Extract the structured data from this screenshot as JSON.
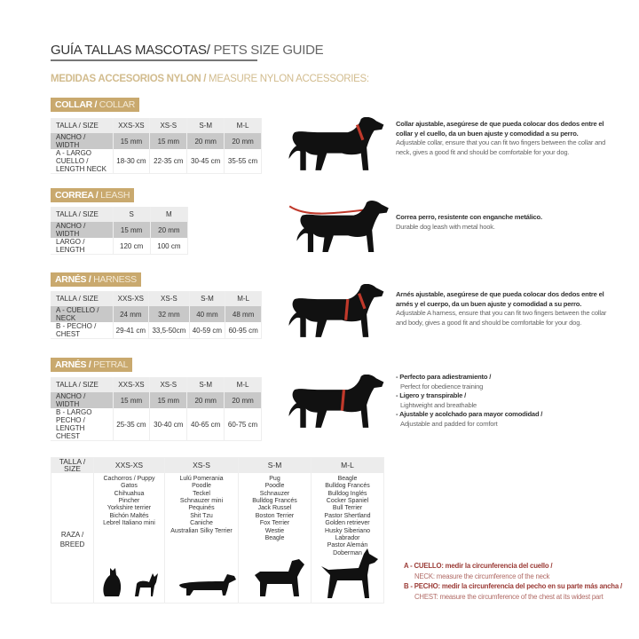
{
  "header": {
    "title_es": "GUÍA TALLAS MASCOTAS/",
    "title_en": " PETS SIZE GUIDE",
    "subtitle_es": "MEDIDAS ACCESORIOS NYLON /",
    "subtitle_en": " MEASURE NYLON ACCESSORIES:"
  },
  "colors": {
    "accent": "#c9a96e",
    "note": "#9b3b36",
    "row_gray": "#c8c8c8"
  },
  "collar": {
    "badge_es": "COLLAR /",
    "badge_en": " COLLAR",
    "rows": [
      [
        "TALLA / SIZE",
        "XXS-XS",
        "XS-S",
        "S-M",
        "M-L"
      ],
      [
        "ANCHO / WIDTH",
        "15 mm",
        "15 mm",
        "20 mm",
        "20 mm"
      ],
      [
        "A - LARGO CUELLO / LENGTH NECK",
        "18-30 cm",
        "22-35 cm",
        "30-45 cm",
        "35-55 cm"
      ]
    ],
    "desc_es": "Collar ajustable, asegúrese de que pueda colocar dos dedos entre el collar y el cuello, da un buen ajuste y comodidad a su perro.",
    "desc_en": "Adjustable collar, ensure that you can fit two fingers between the collar and neck, gives a good fit and should be comfortable for your dog."
  },
  "leash": {
    "badge_es": "CORREA /",
    "badge_en": " LEASH",
    "rows": [
      [
        "TALLA / SIZE",
        "S",
        "M"
      ],
      [
        "ANCHO / WIDTH",
        "15 mm",
        "20 mm"
      ],
      [
        "LARGO / LENGTH",
        "120 cm",
        "100 cm"
      ]
    ],
    "desc_es": "Correa perro, resistente con enganche metálico.",
    "desc_en": "Durable dog leash with metal hook."
  },
  "harness": {
    "badge_es": "ARNÉS /",
    "badge_en": " HARNESS",
    "rows": [
      [
        "TALLA / SIZE",
        "XXS-XS",
        "XS-S",
        "S-M",
        "M-L"
      ],
      [
        "A - CUELLO / NECK",
        "24 mm",
        "32 mm",
        "40 mm",
        "48 mm"
      ],
      [
        "B - PECHO / CHEST",
        "29-41 cm",
        "33,5-50cm",
        "40-59 cm",
        "60-95 cm"
      ]
    ],
    "desc_es": "Arnés ajustable, asegúrese de que pueda colocar dos dedos entre el arnés y el cuerpo, da un buen ajuste y comodidad a su perro.",
    "desc_en": "Adjustable A harness, ensure that you can fit two fingers between the collar and body, gives a good fit and should be comfortable for your dog."
  },
  "petral": {
    "badge_es": "ARNÉS /",
    "badge_en": " PETRAL",
    "rows": [
      [
        "TALLA / SIZE",
        "XXS-XS",
        "XS-S",
        "S-M",
        "M-L"
      ],
      [
        "ANCHO / WIDTH",
        "15 mm",
        "15 mm",
        "20 mm",
        "20 mm"
      ],
      [
        "B - LARGO PECHO / LENGTH CHEST",
        "25-35 cm",
        "30-40 cm",
        "40-65 cm",
        "60-75 cm"
      ]
    ],
    "bullets": [
      {
        "es": "- Perfecto para adiestramiento /",
        "en": "Perfect for obedience training"
      },
      {
        "es": "- Ligero y transpirable /",
        "en": "Lightweight and breathable"
      },
      {
        "es": "- Ajustable y acolchado para mayor comodidad /",
        "en": "Adjustable and padded for comfort"
      }
    ]
  },
  "breeds": {
    "size_label": "TALLA / SIZE",
    "breed_label": "RAZA / BREED",
    "sizes": [
      "XXS-XS",
      "XS-S",
      "S-M",
      "M-L"
    ],
    "lists": [
      [
        "Cachorros / Puppy",
        "Gatos",
        "Chihuahua",
        "Pincher",
        "Yorkshire terrier",
        "Bichón Maltés",
        "Lebrel Italiano mini"
      ],
      [
        "Lulú Pomerania",
        "Poodle",
        "Teckel",
        "Schnauzer mini",
        "Pequinés",
        "Shit Tzu",
        "Caniche",
        "Australian Silky Terrier"
      ],
      [
        "Pug",
        "Poodle",
        "Schnauzer",
        "Bulldog Francés",
        "Jack Russel",
        "Boston Terrier",
        "Fox Terrier",
        "Westie",
        "Beagle"
      ],
      [
        "Beagle",
        "Bulldog Francés",
        "Bulldog Inglés",
        "Cocker Spaniel",
        "Bull Terrier",
        "Pastor Shertland",
        "Golden retriever",
        "Husky Siberiano",
        "Labrador",
        "Pastor Alemán",
        "Doberman"
      ]
    ]
  },
  "notes": [
    {
      "es": "A - CUELLO: medir la circunferencia del cuello /",
      "en": "NECK: measure the circumference of the neck"
    },
    {
      "es": "B - PECHO: medir la circunferencia del pecho en su parte más ancha /",
      "en": "CHEST: measure the circumference of the chest at its widest part"
    }
  ]
}
